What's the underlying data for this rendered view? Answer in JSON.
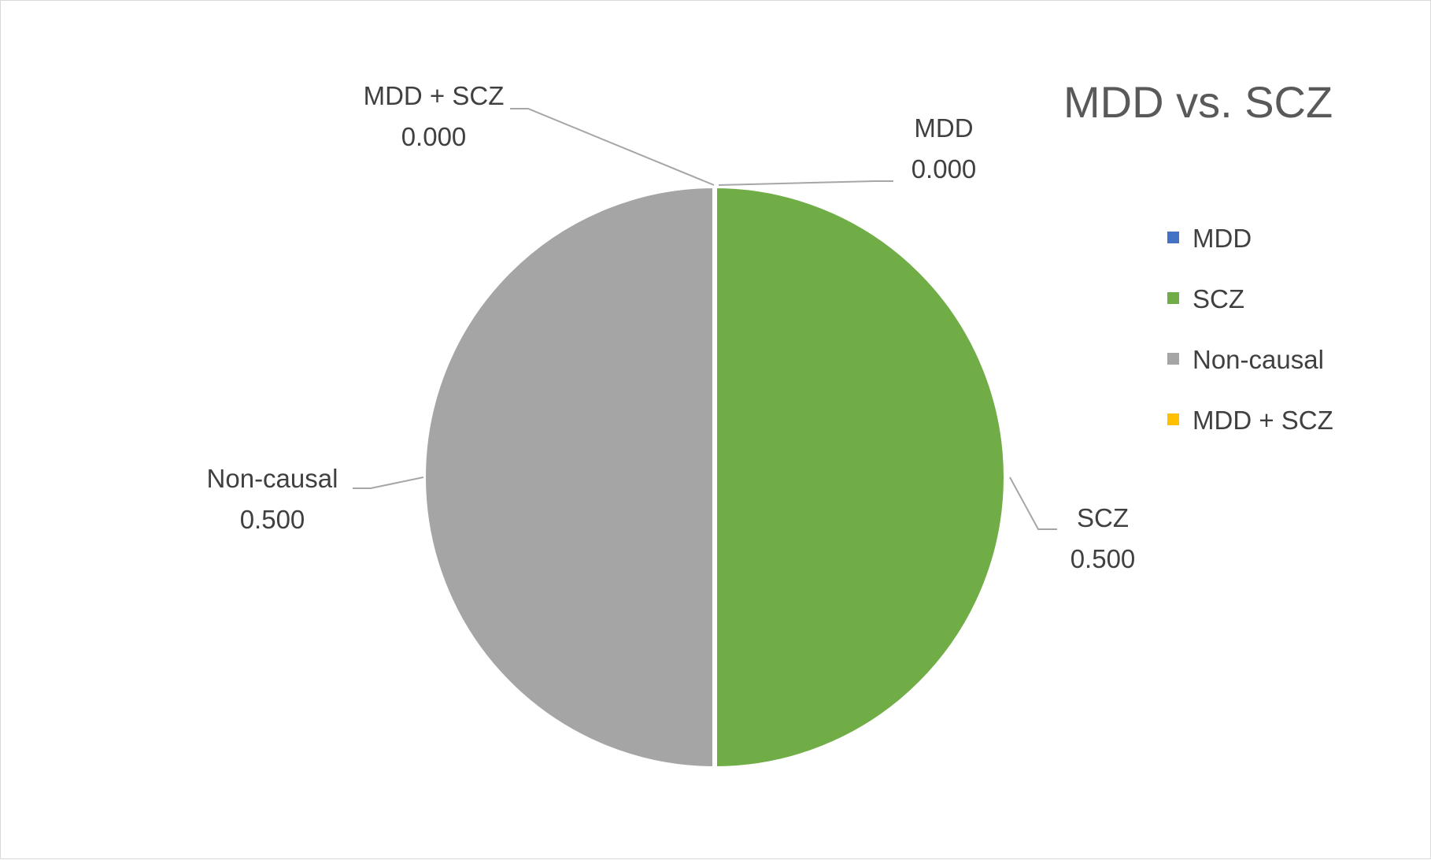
{
  "chart_data": {
    "type": "pie",
    "title": "MDD vs. SCZ",
    "series": [
      {
        "name": "MDD",
        "value": 0.0,
        "value_label": "0.000",
        "color": "#4472C4"
      },
      {
        "name": "SCZ",
        "value": 0.5,
        "value_label": "0.500",
        "color": "#70AD47"
      },
      {
        "name": "Non-causal",
        "value": 0.5,
        "value_label": "0.500",
        "color": "#A5A5A5"
      },
      {
        "name": "MDD + SCZ",
        "value": 0.0,
        "value_label": "0.000",
        "color": "#FFC000"
      }
    ],
    "legend_position": "right"
  }
}
